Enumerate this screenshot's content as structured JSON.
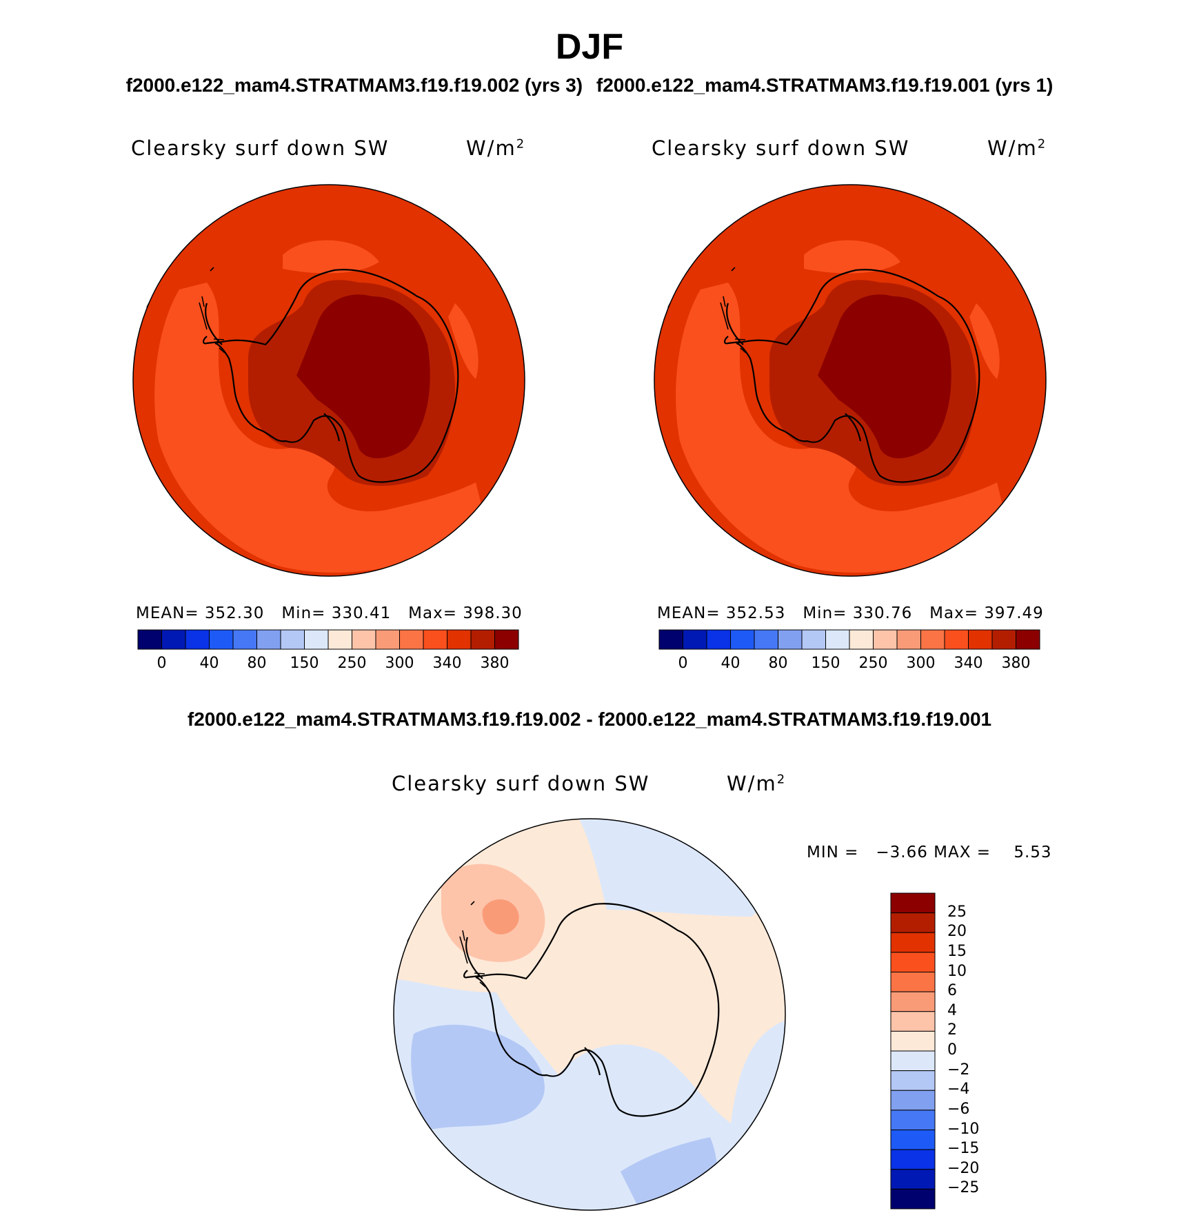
{
  "title": "DJF",
  "case_titles": {
    "left": "f2000.e122_mam4.STRATMAM3.f19.f19.002 (yrs 3)",
    "right": "f2000.e122_mam4.STRATMAM3.f19.f19.001 (yrs 1)"
  },
  "diff_title": "f2000.e122_mam4.STRATMAM3.f19.f19.002 - f2000.e122_mam4.STRATMAM3.f19.f19.001",
  "chart_data": [
    {
      "type": "heatmap",
      "projection": "south-polar-stereographic",
      "variable": "Clearsky surf down SW",
      "units": "W/m",
      "units_sup": "2",
      "stats": {
        "mean_label": "MEAN=",
        "mean": "352.30",
        "min_label": "Min=",
        "min": "330.41",
        "max_label": "Max=",
        "max": "398.30"
      },
      "colorbar_ticks": [
        "0",
        "40",
        "80",
        "150",
        "250",
        "300",
        "340",
        "380"
      ],
      "colors": [
        "#00006e",
        "#0019b4",
        "#0a32e6",
        "#1e5af5",
        "#4678f5",
        "#82a0f0",
        "#b4c8f5",
        "#dce8fa",
        "#fde9d8",
        "#fdc4aa",
        "#fa9b78",
        "#fa7446",
        "#fa501e",
        "#e13200",
        "#b41e00",
        "#8c0000"
      ]
    },
    {
      "type": "heatmap",
      "projection": "south-polar-stereographic",
      "variable": "Clearsky surf down SW",
      "units": "W/m",
      "units_sup": "2",
      "stats": {
        "mean_label": "MEAN=",
        "mean": "352.53",
        "min_label": "Min=",
        "min": "330.76",
        "max_label": "Max=",
        "max": "397.49"
      },
      "colorbar_ticks": [
        "0",
        "40",
        "80",
        "150",
        "250",
        "300",
        "340",
        "380"
      ],
      "colors": [
        "#00006e",
        "#0019b4",
        "#0a32e6",
        "#1e5af5",
        "#4678f5",
        "#82a0f0",
        "#b4c8f5",
        "#dce8fa",
        "#fde9d8",
        "#fdc4aa",
        "#fa9b78",
        "#fa7446",
        "#fa501e",
        "#e13200",
        "#b41e00",
        "#8c0000"
      ]
    },
    {
      "type": "heatmap",
      "projection": "south-polar-stereographic",
      "variable": "Clearsky surf down SW",
      "units": "W/m",
      "units_sup": "2",
      "stats": {
        "min_label": "MIN =",
        "min": "−3.66",
        "max_label": "MAX =",
        "max": "5.53"
      },
      "colorbar_ticks": [
        "25",
        "20",
        "15",
        "10",
        "6",
        "4",
        "2",
        "0",
        "−2",
        "−4",
        "−6",
        "−10",
        "−15",
        "−20",
        "−25"
      ],
      "colors": [
        "#8c0000",
        "#b41e00",
        "#e13200",
        "#fa501e",
        "#fa7446",
        "#fa9b78",
        "#fdc4aa",
        "#fde9d8",
        "#dce8fa",
        "#b4c8f5",
        "#82a0f0",
        "#4678f5",
        "#1e5af5",
        "#0a32e6",
        "#0019b4",
        "#00006e"
      ]
    }
  ]
}
